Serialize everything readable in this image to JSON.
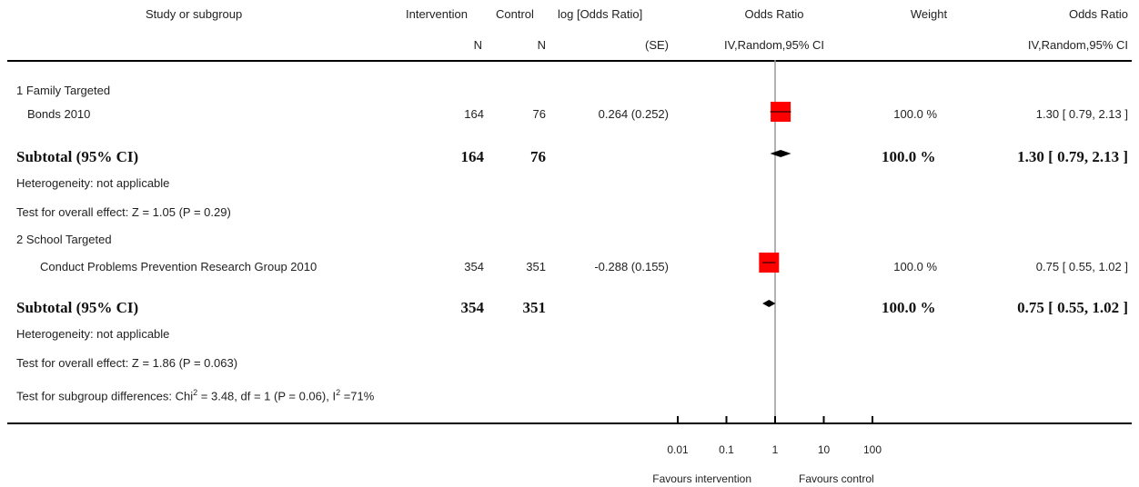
{
  "header": {
    "study_col": "Study or subgroup",
    "intervention_col": "Intervention",
    "control_col": "Control",
    "logor_col": "log [Odds Ratio]",
    "or_plot_col": "Odds Ratio",
    "weight_col": "Weight",
    "or_text_col": "Odds Ratio",
    "intervention_sub": "N",
    "control_sub": "N",
    "logor_sub": "(SE)",
    "or_plot_sub": "IV,Random,95% CI",
    "or_text_sub": "IV,Random,95% CI"
  },
  "groups": [
    {
      "title": "1 Family Targeted",
      "study": {
        "name": "Bonds 2010",
        "n_int": "164",
        "n_ctrl": "76",
        "logor_se": "0.264 (0.252)",
        "weight": "100.0 %",
        "ci": "1.30 [ 0.79, 2.13 ]"
      },
      "subtotal": {
        "label": "Subtotal (95% CI)",
        "n_int": "164",
        "n_ctrl": "76",
        "weight": "100.0 %",
        "ci": "1.30 [ 0.79, 2.13 ]"
      },
      "heterogeneity": "Heterogeneity: not applicable",
      "overall": "Test for overall effect: Z = 1.05 (P = 0.29)"
    },
    {
      "title": "2 School Targeted",
      "study": {
        "name": "Conduct Problems Prevention Research Group 2010",
        "n_int": "354",
        "n_ctrl": "351",
        "logor_se": "-0.288 (0.155)",
        "weight": "100.0 %",
        "ci": "0.75 [ 0.55, 1.02 ]"
      },
      "subtotal": {
        "label": "Subtotal (95% CI)",
        "n_int": "354",
        "n_ctrl": "351",
        "weight": "100.0 %",
        "ci": "0.75 [ 0.55, 1.02 ]"
      },
      "heterogeneity": "Heterogeneity: not applicable",
      "overall": "Test for overall effect: Z = 1.86 (P = 0.063)"
    }
  ],
  "subgroup_diff": {
    "prefix": "Test for subgroup differences: Chi",
    "sup1": "2",
    "mid": " = 3.48, df = 1 (P = 0.06), I",
    "sup2": "2",
    "suffix": " =71%"
  },
  "axis": {
    "ticks": [
      "0.01",
      "0.1",
      "1",
      "10",
      "100"
    ],
    "favours_left": "Favours intervention",
    "favours_right": "Favours control"
  },
  "colors": {
    "study_box": "#ff0000",
    "diamond": "#000000",
    "reference_line": "#999999"
  },
  "chart_data": {
    "type": "forest",
    "x_scale": "log",
    "xlim": [
      0.01,
      100
    ],
    "ticks": [
      0.01,
      0.1,
      1,
      10,
      100
    ],
    "reference_value": 1,
    "studies": [
      {
        "name": "Bonds 2010",
        "or": 1.3,
        "lo": 0.79,
        "hi": 2.13
      },
      {
        "name": "Conduct Problems Prevention Research Group 2010",
        "or": 0.75,
        "lo": 0.55,
        "hi": 1.02
      }
    ],
    "subtotals": [
      {
        "label": "Subtotal (95% CI)",
        "or": 1.3,
        "lo": 0.79,
        "hi": 2.13
      },
      {
        "label": "Subtotal (95% CI)",
        "or": 0.75,
        "lo": 0.55,
        "hi": 1.02
      }
    ]
  }
}
